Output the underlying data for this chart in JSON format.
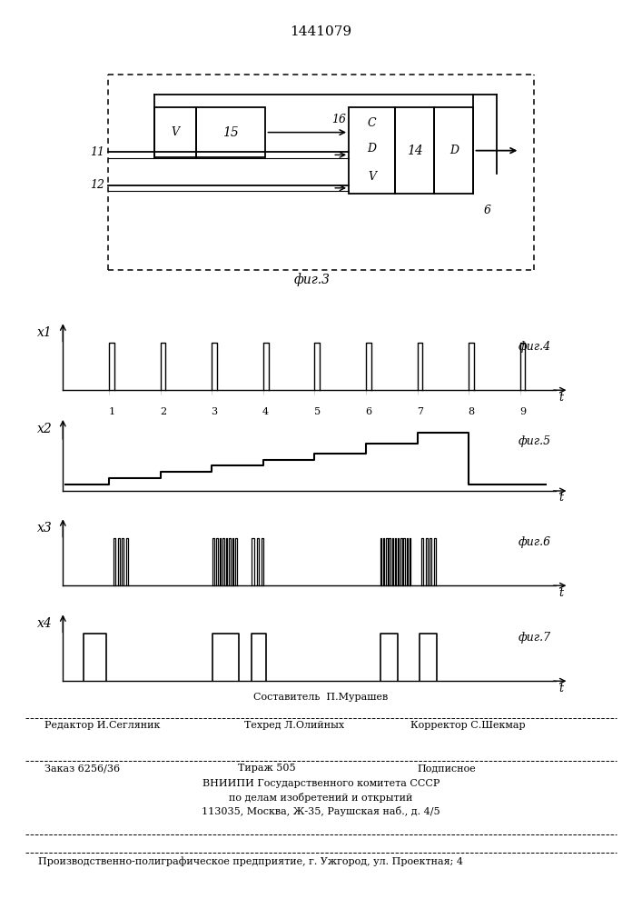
{
  "title": "1441079",
  "fig3_label": "фиг.3",
  "fig4_label": "фиг.4",
  "fig5_label": "фиг.5",
  "fig6_label": "фиг.6",
  "fig7_label": "фиг.7",
  "x1_label": "x1",
  "x2_label": "x2",
  "x3_label": "x3",
  "x4_label": "x4",
  "t_label": "t",
  "bg_color": "#ffffff",
  "line_color": "#000000",
  "footer_sostavitel": "Составитель  П.Мурашев",
  "footer_editor_line": "Редактор И.Сегляник        Техред Л.Олийных        Корректор С.Шекмар",
  "footer_zakaz": "Заказ 6256/36",
  "footer_tirazh": "Тираж 505",
  "footer_podpisnoe": "Подписное",
  "footer_vniiipi1": "ВНИИПИ Государственного комитета СССР",
  "footer_vniiipi2": "по делам изобретений и открытий",
  "footer_vniiipi3": "113035, Москва, Ж-35, Раушская наб., д. 4/5",
  "footer_proizv": "Производственно-полиграфическое предприятие, г. Ужгород, ул. Проектная; 4"
}
